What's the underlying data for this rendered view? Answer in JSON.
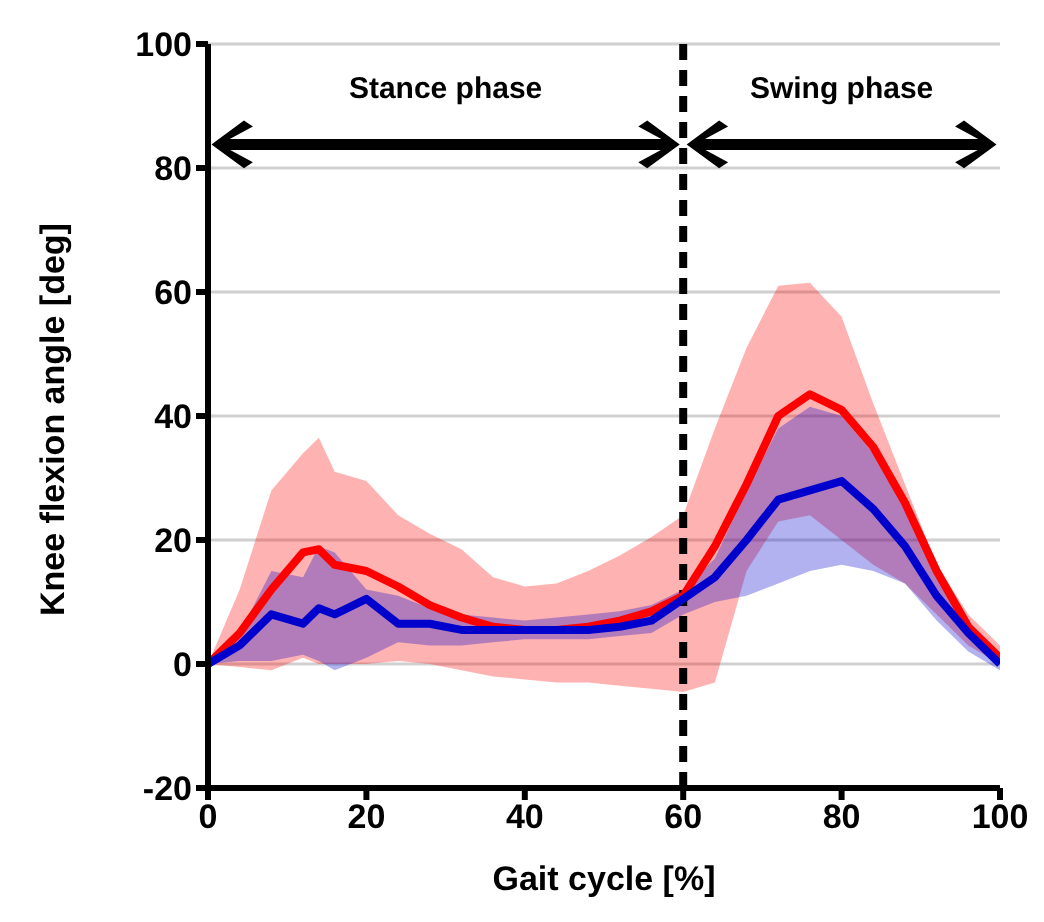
{
  "chart_data": {
    "type": "line",
    "xlabel": "Gait cycle [%]",
    "ylabel": "Knee flexion angle [deg]",
    "x": [
      0,
      4,
      8,
      12,
      14,
      16,
      20,
      24,
      28,
      32,
      36,
      40,
      44,
      48,
      52,
      56,
      60,
      64,
      68,
      72,
      76,
      80,
      84,
      88,
      92,
      96,
      100
    ],
    "series": [
      {
        "color": "#ff0000",
        "values": [
          0,
          5,
          12,
          18,
          18.5,
          16,
          15,
          12.5,
          9.5,
          7.5,
          6,
          5.5,
          5.5,
          6,
          7,
          8.5,
          11,
          19,
          29,
          40,
          43.5,
          41,
          35,
          26,
          15,
          6,
          1
        ],
        "lower": [
          0,
          -0.5,
          -1,
          1,
          0,
          0,
          0,
          0.5,
          0,
          -1,
          -2,
          -2.5,
          -3,
          -3,
          -3.5,
          -4,
          -4.5,
          -3,
          15,
          23,
          24,
          20,
          16,
          13,
          8,
          3,
          0
        ],
        "upper": [
          0,
          12,
          28,
          34,
          36.5,
          31,
          29.5,
          24,
          21,
          18.5,
          14,
          12.5,
          13,
          15,
          17.5,
          20.5,
          24,
          38,
          51,
          61,
          61.5,
          56,
          42,
          29,
          16,
          8,
          3
        ]
      },
      {
        "color": "#0000cc",
        "values": [
          0,
          3,
          8,
          6.5,
          9,
          8,
          10.5,
          6.5,
          6.5,
          5.5,
          5.5,
          5.5,
          5.5,
          5.5,
          6,
          7,
          10.5,
          14,
          20,
          26.5,
          28,
          29.5,
          25,
          19,
          11,
          5,
          0
        ],
        "lower": [
          0,
          0.5,
          0.5,
          1.5,
          0.5,
          -1,
          1,
          3.5,
          3,
          3,
          3.5,
          4,
          4,
          4,
          4.5,
          5,
          8,
          10,
          11,
          13,
          15,
          16,
          15,
          13,
          7,
          2,
          -1
        ],
        "upper": [
          0,
          5,
          15,
          14,
          19,
          18,
          12,
          11,
          9,
          8,
          7.5,
          7,
          7.5,
          8,
          8.5,
          9.5,
          12,
          17,
          28,
          38,
          41.5,
          40,
          34,
          25,
          14,
          5,
          0
        ]
      }
    ],
    "xlim": [
      0,
      100
    ],
    "xticks": [
      0,
      20,
      40,
      60,
      80,
      100
    ],
    "ylim": [
      -20,
      100
    ],
    "yticks": [
      -20,
      0,
      20,
      40,
      60,
      80,
      100
    ],
    "grid": "y",
    "ref_lines": [
      {
        "axis": "x",
        "value": 60,
        "color": "#000000",
        "line_style": "dashed"
      }
    ],
    "annotations": [
      "Stance phase",
      "Swing phase"
    ],
    "marker": "none",
    "line_style": "solid"
  }
}
